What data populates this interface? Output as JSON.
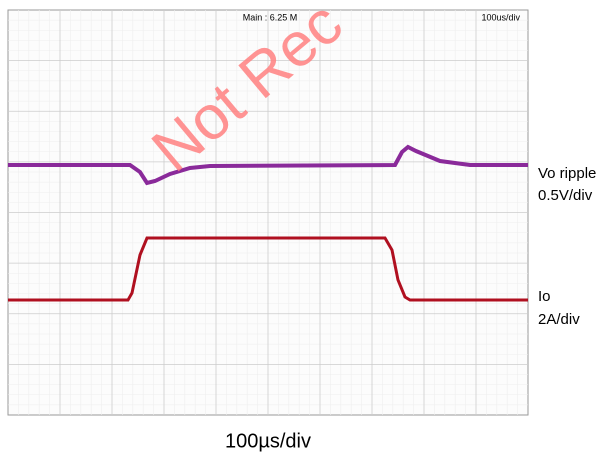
{
  "scope": {
    "header_center": "Main : 6.25 M",
    "header_right": "100us/div"
  },
  "channels": [
    {
      "name": "Vo ripple",
      "scale": "0.5V/div"
    },
    {
      "name": "Io",
      "scale": "2A/div"
    }
  ],
  "time_scale": "100µs/div",
  "watermark": "Not Rec"
}
